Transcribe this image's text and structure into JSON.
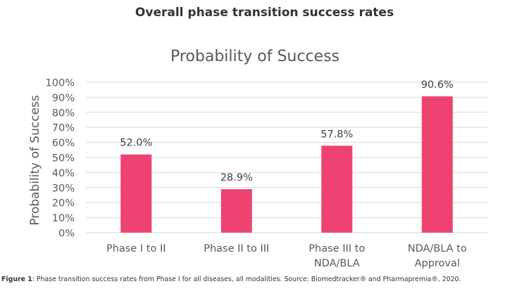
{
  "page_heading": "Overall phase transition success rates",
  "chart_data": {
    "type": "bar",
    "title": "Probability of Success",
    "xlabel": "",
    "ylabel": "Probability of Success",
    "categories": [
      [
        "Phase I to II"
      ],
      [
        "Phase II to III"
      ],
      [
        "Phase III to",
        "NDA/BLA"
      ],
      [
        "NDA/BLA to",
        "Approval"
      ]
    ],
    "values": [
      52.0,
      28.9,
      57.8,
      90.6
    ],
    "data_labels": [
      "52.0%",
      "28.9%",
      "57.8%",
      "90.6%"
    ],
    "ylim": [
      0,
      100
    ],
    "yticks": [
      0,
      10,
      20,
      30,
      40,
      50,
      60,
      70,
      80,
      90,
      100
    ],
    "ytick_labels": [
      "0%",
      "10%",
      "20%",
      "30%",
      "40%",
      "50%",
      "60%",
      "70%",
      "80%",
      "90%",
      "100%"
    ],
    "grid": true,
    "legend": "none",
    "bar_color": "#ee4370",
    "grid_color": "#d9d9d9",
    "text_color": "#595959"
  },
  "caption": {
    "label": "Figure 1",
    "text": ": Phase transition success rates from Phase I for all diseases, all modalities. Source: Biomedtracker® and Pharmapremia®, 2020."
  }
}
